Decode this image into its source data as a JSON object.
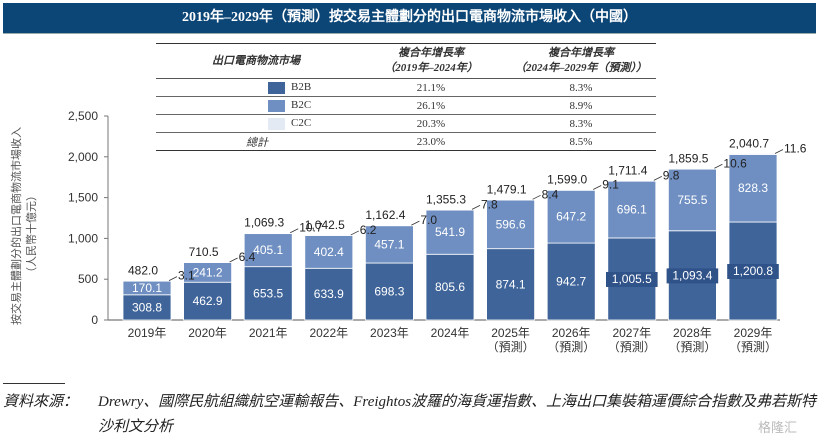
{
  "title": "2019年–2029年（預測）按交易主體劃分的出口電商物流市場收入（中國）",
  "cagr_table": {
    "headers": [
      "出口電商物流市場",
      "複合年增長率\n（2019年–2024年）",
      "複合年增長率\n（2024年–2029年（預測））"
    ],
    "header_col1": "出口電商物流市場",
    "header_col2_line1": "複合年增長率",
    "header_col2_line2": "（2019年–2024年）",
    "header_col3_line1": "複合年增長率",
    "header_col3_line2": "（2024年–2029年（預測））",
    "rows": [
      {
        "segment": "B2B",
        "cagr_2019_2024": "21.1%",
        "cagr_2024_2029": "8.3%",
        "color": "#3f6499"
      },
      {
        "segment": "B2C",
        "cagr_2019_2024": "26.1%",
        "cagr_2024_2029": "8.9%",
        "color": "#6f8fc2"
      },
      {
        "segment": "C2C",
        "cagr_2019_2024": "20.3%",
        "cagr_2024_2029": "8.3%",
        "color": "#e4eaf3"
      },
      {
        "segment": "總計",
        "cagr_2019_2024": "23.0%",
        "cagr_2024_2029": "8.5%",
        "color": ""
      }
    ]
  },
  "chart_data": {
    "type": "bar",
    "stacked": true,
    "title": "2019年–2029年（預測）按交易主體劃分的出口電商物流市場收入（中國）",
    "xlabel": "",
    "ylabel": "按交易主體劃分的出口電商物流市場收入（人民幣十億元）",
    "ylabel_line1": "按交易主體劃分的出口電商物流市場收入",
    "ylabel_line2": "（人民幣十億元）",
    "ylim": [
      0,
      2500
    ],
    "yticks": [
      0,
      500,
      1000,
      1500,
      2000,
      2500
    ],
    "ytick_labels": [
      "0",
      "500",
      "1,000",
      "1,500",
      "2,000",
      "2,500"
    ],
    "grid": false,
    "legend": "table-top",
    "categories": [
      "2019年",
      "2020年",
      "2021年",
      "2022年",
      "2023年",
      "2024年",
      "2025年",
      "2026年",
      "2027年",
      "2028年",
      "2029年"
    ],
    "category_sublabels": [
      "",
      "",
      "",
      "",
      "",
      "",
      "（預測）",
      "（預測）",
      "（預測）",
      "（預測）",
      "（預測）"
    ],
    "series": [
      {
        "name": "B2B",
        "color": "#3f6499",
        "values": [
          308.8,
          462.9,
          653.5,
          633.9,
          698.3,
          805.6,
          874.1,
          942.7,
          1005.5,
          1093.4,
          1200.8
        ],
        "labels": [
          "308.8",
          "462.9",
          "653.5",
          "633.9",
          "698.3",
          "805.6",
          "874.1",
          "942.7",
          "1,005.5",
          "1,093.4",
          "1,200.8"
        ]
      },
      {
        "name": "B2C",
        "color": "#6f8fc2",
        "values": [
          170.1,
          241.2,
          405.1,
          402.4,
          457.1,
          541.9,
          596.6,
          647.2,
          696.1,
          755.5,
          828.3
        ],
        "labels": [
          "170.1",
          "241.2",
          "405.1",
          "402.4",
          "457.1",
          "541.9",
          "596.6",
          "647.2",
          "696.1",
          "755.5",
          "828.3"
        ]
      },
      {
        "name": "C2C",
        "color": "#e4eaf3",
        "values": [
          3.1,
          6.4,
          10.7,
          6.2,
          7.0,
          7.8,
          8.4,
          9.1,
          9.8,
          10.6,
          11.6
        ],
        "labels": [
          "3.1",
          "6.4",
          "10.7",
          "6.2",
          "7.0",
          "7.8",
          "8.4",
          "9.1",
          "9.8",
          "10.6",
          "11.6"
        ]
      }
    ],
    "totals": [
      482.0,
      710.5,
      1069.3,
      1042.5,
      1162.4,
      1355.3,
      1479.1,
      1599.0,
      1711.4,
      1859.5,
      2040.7
    ],
    "total_labels": [
      "482.0",
      "710.5",
      "1,069.3",
      "1,042.5",
      "1,162.4",
      "1,355.3",
      "1,479.1",
      "1,599.0",
      "1,711.4",
      "1,859.5",
      "2,040.7"
    ]
  },
  "source": {
    "label": "資料來源：",
    "text": "Drewry、國際民航組織航空運輸報告、Freightos波羅的海貨運指數、上海出口集裝箱運價綜合指數及弗若斯特沙利文分析"
  },
  "watermark": "格隆汇"
}
